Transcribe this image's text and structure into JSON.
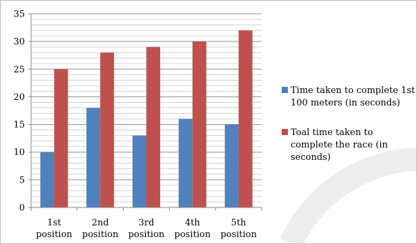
{
  "chart_data": {
    "type": "bar",
    "title": "",
    "xlabel": "",
    "ylabel": "",
    "categories": [
      [
        "1st",
        "position"
      ],
      [
        "2nd",
        "position"
      ],
      [
        "3rd",
        "position"
      ],
      [
        "4th",
        "position"
      ],
      [
        "5th",
        "position"
      ]
    ],
    "series": [
      {
        "name": [
          "Time taken to complete 1st",
          "100 meters (in seconds)"
        ],
        "values": [
          10,
          18,
          13,
          16,
          15
        ],
        "color": "#4f81bd"
      },
      {
        "name": [
          "Toal time taken to",
          "complete the race (in",
          "seconds)"
        ],
        "values": [
          25,
          28,
          29,
          30,
          32
        ],
        "color": "#c0504d"
      }
    ],
    "ylim": [
      0,
      35
    ],
    "yticks": [
      "0",
      "5",
      "10",
      "15",
      "20",
      "25",
      "30",
      "35"
    ],
    "grid": "horizontal major and minor",
    "legend_position": "right"
  }
}
